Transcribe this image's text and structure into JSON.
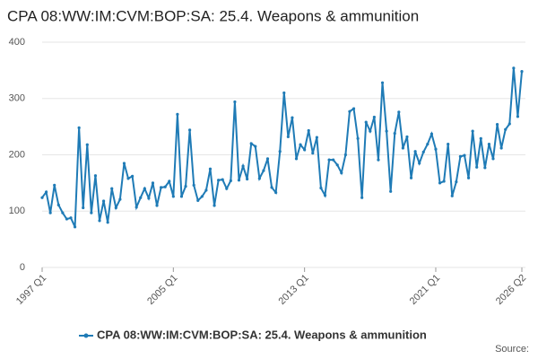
{
  "chart_data": {
    "type": "line",
    "title": "CPA 08:WW:IM:CVM:BOP:SA: 25.4. Weapons & ammunition",
    "source": "Source:",
    "categories": [
      "1997 Q1",
      null,
      null,
      null,
      null,
      null,
      null,
      null,
      null,
      null,
      null,
      null,
      null,
      null,
      null,
      null,
      null,
      null,
      null,
      null,
      null,
      null,
      null,
      null,
      null,
      null,
      null,
      null,
      null,
      null,
      null,
      null,
      "2005 Q1",
      null,
      null,
      null,
      null,
      null,
      null,
      null,
      null,
      null,
      null,
      null,
      null,
      null,
      null,
      null,
      null,
      null,
      null,
      null,
      null,
      null,
      null,
      null,
      null,
      null,
      null,
      null,
      null,
      null,
      null,
      null,
      "2013 Q1",
      null,
      null,
      null,
      null,
      null,
      null,
      null,
      null,
      null,
      null,
      null,
      null,
      null,
      null,
      null,
      null,
      null,
      null,
      null,
      null,
      null,
      null,
      null,
      null,
      null,
      null,
      null,
      null,
      null,
      null,
      null,
      "2021 Q1",
      null,
      null,
      null,
      null,
      null,
      null,
      null,
      null,
      null,
      null,
      null,
      null,
      null,
      null,
      null,
      null,
      null,
      null,
      null,
      null,
      "2026 Q2"
    ],
    "series": [
      {
        "name": "CPA 08:WW:IM:CVM:BOP:SA: 25.4. Weapons & ammunition",
        "color": "#1f7bb6",
        "values": [
          124,
          134,
          97,
          146,
          111,
          97,
          86,
          88,
          72,
          248,
          106,
          218,
          97,
          163,
          83,
          118,
          80,
          140,
          106,
          121,
          185,
          158,
          162,
          107,
          124,
          140,
          123,
          150,
          110,
          142,
          143,
          153,
          126,
          272,
          126,
          144,
          244,
          146,
          119,
          126,
          137,
          175,
          110,
          155,
          156,
          140,
          154,
          294,
          155,
          180,
          157,
          220,
          215,
          158,
          172,
          193,
          142,
          133,
          206,
          310,
          232,
          266,
          193,
          218,
          209,
          243,
          203,
          231,
          141,
          128,
          191,
          191,
          182,
          168,
          200,
          277,
          282,
          229,
          124,
          258,
          242,
          267,
          191,
          328,
          242,
          135,
          238,
          276,
          212,
          232,
          159,
          206,
          185,
          205,
          219,
          237,
          210,
          150,
          153,
          219,
          127,
          152,
          197,
          199,
          159,
          242,
          178,
          229,
          177,
          219,
          193,
          254,
          212,
          245,
          255,
          354,
          268,
          348
        ]
      }
    ],
    "ylim": [
      0,
      400
    ],
    "yticks": [
      0,
      100,
      200,
      300,
      400
    ],
    "grid": true
  }
}
